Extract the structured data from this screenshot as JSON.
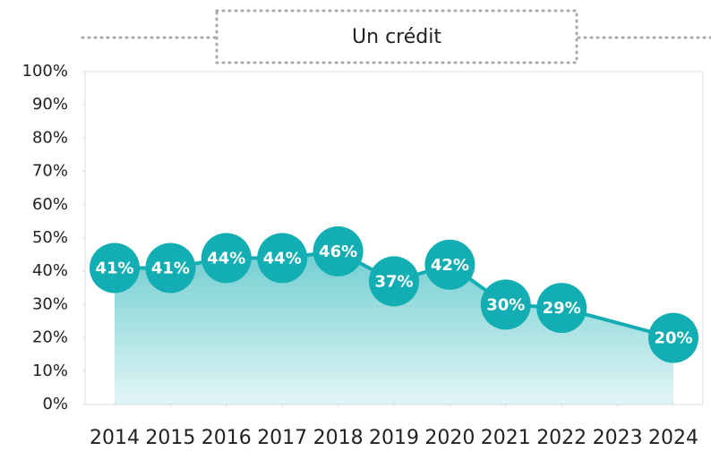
{
  "chart_data": {
    "type": "line",
    "title": "Un crédit",
    "xticks": [
      2014,
      2015,
      2016,
      2017,
      2018,
      2019,
      2020,
      2021,
      2022,
      2023,
      2024
    ],
    "xlim": [
      2014,
      2024
    ],
    "series": [
      {
        "name": "Un crédit",
        "color": "#13aeb3",
        "x": [
          2014,
          2015,
          2016,
          2017,
          2018,
          2019,
          2020,
          2021,
          2022,
          2024
        ],
        "values": [
          41,
          41,
          44,
          44,
          46,
          37,
          42,
          30,
          29,
          20
        ],
        "value_labels": [
          "41%",
          "41%",
          "44%",
          "44%",
          "46%",
          "37%",
          "42%",
          "30%",
          "29%",
          "20%"
        ]
      }
    ],
    "ylim": [
      0,
      100
    ],
    "yticks": [
      {
        "value": 0,
        "label": "0%"
      },
      {
        "value": 10,
        "label": "10%"
      },
      {
        "value": 20,
        "label": "20%"
      },
      {
        "value": 30,
        "label": "30%"
      },
      {
        "value": 40,
        "label": "40%"
      },
      {
        "value": 50,
        "label": "50%"
      },
      {
        "value": 60,
        "label": "60%"
      },
      {
        "value": 70,
        "label": "70%"
      },
      {
        "value": 80,
        "label": "80%"
      },
      {
        "value": 90,
        "label": "90%"
      },
      {
        "value": 100,
        "label": "100%"
      }
    ]
  }
}
